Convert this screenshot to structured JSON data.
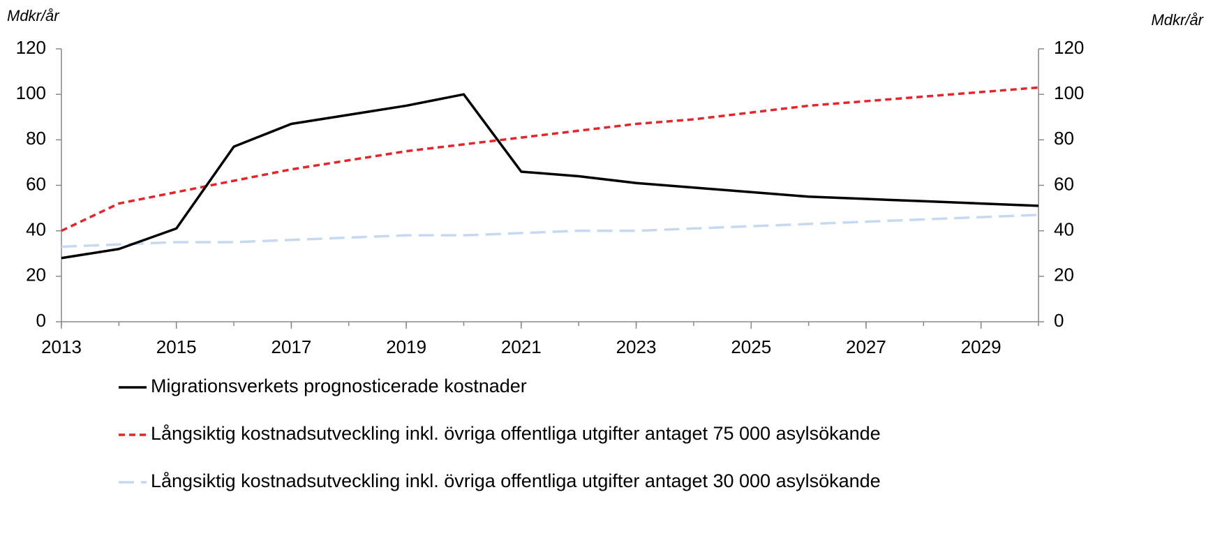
{
  "chart_data": {
    "type": "line",
    "ylabel": "Mdkr/år",
    "y2label": "Mdkr/år",
    "x": [
      2013,
      2014,
      2015,
      2016,
      2017,
      2018,
      2019,
      2020,
      2021,
      2022,
      2023,
      2024,
      2025,
      2026,
      2027,
      2028,
      2029,
      2030
    ],
    "xlim": [
      2013,
      2030
    ],
    "xticks": [
      2013,
      2015,
      2017,
      2019,
      2021,
      2023,
      2025,
      2027,
      2029
    ],
    "ylim": [
      0,
      120
    ],
    "yticks": [
      0,
      20,
      40,
      60,
      80,
      100,
      120
    ],
    "y2lim": [
      0,
      120
    ],
    "y2ticks": [
      0,
      20,
      40,
      60,
      80,
      100,
      120
    ],
    "series": [
      {
        "name": "Migrationsverkets prognosticerade kostnader",
        "color": "#000000",
        "dash": "solid",
        "values": [
          28,
          32,
          41,
          77,
          87,
          91,
          95,
          100,
          66,
          64,
          61,
          59,
          57,
          55,
          54,
          53,
          52,
          51
        ]
      },
      {
        "name": "Långsiktig kostnadsutveckling inkl. övriga offentliga utgifter antaget 75 000 asylsökande",
        "color": "#e3262b",
        "dash": "dashed",
        "values": [
          40,
          52,
          57,
          62,
          67,
          71,
          75,
          78,
          81,
          84,
          87,
          89,
          92,
          95,
          97,
          99,
          101,
          103
        ]
      },
      {
        "name": "Långsiktig kostnadsutveckling inkl. övriga offentliga utgifter antaget 30 000 asylsökande",
        "color": "#c6d9f0",
        "dash": "long-dashed",
        "values": [
          33,
          34,
          35,
          35,
          36,
          37,
          38,
          38,
          39,
          40,
          40,
          41,
          42,
          43,
          44,
          45,
          46,
          47
        ]
      }
    ]
  }
}
